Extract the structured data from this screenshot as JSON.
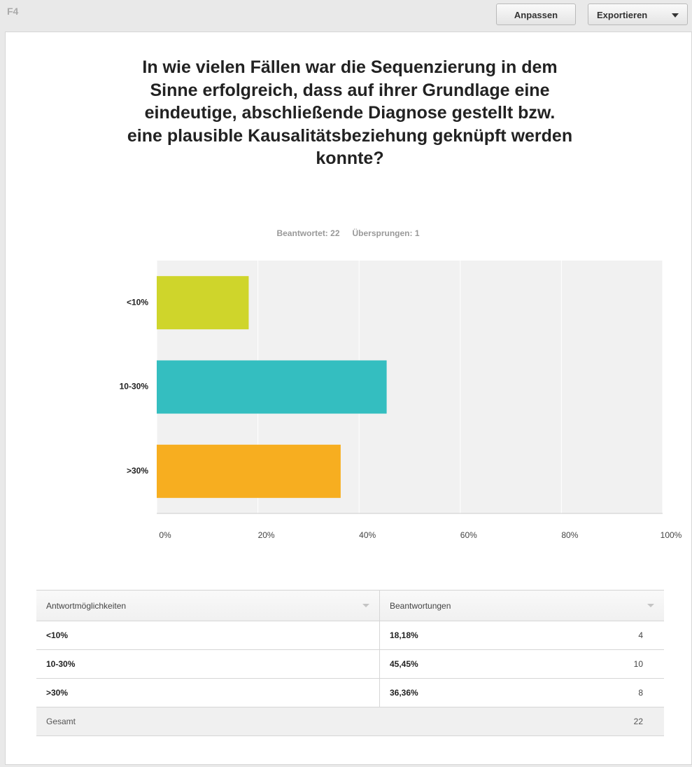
{
  "header": {
    "label": "F4",
    "buttons": [
      "Anpassen",
      "Exportieren"
    ]
  },
  "chart_data": {
    "type": "bar",
    "orientation": "horizontal",
    "title": "In wie vielen Fällen war die Sequenzierung in dem Sinne erfolgreich, dass auf ihrer Grundlage eine eindeutige, abschließende Diagnose gestellt bzw. eine plausible Kausalitätsbeziehung geknüpft werden konnte?",
    "summary": [
      "Beantwortet: 22",
      "Übersprungen: 1"
    ],
    "categories": [
      "<10%",
      "10-30%",
      ">30%"
    ],
    "values": [
      18.18,
      45.45,
      36.36
    ],
    "colors": [
      "#cfd52b",
      "#34bec0",
      "#f7ae20"
    ],
    "xlim": [
      0,
      100
    ],
    "xticks": [
      {
        "value": 0,
        "label": "0%"
      },
      {
        "value": 20,
        "label": "20%"
      },
      {
        "value": 40,
        "label": "40%"
      },
      {
        "value": 60,
        "label": "60%"
      },
      {
        "value": 80,
        "label": "80%"
      },
      {
        "value": 100,
        "label": "100%"
      }
    ],
    "grid": true
  },
  "table": {
    "columns": [
      "Antwortmöglichkeiten",
      "Beantwortungen"
    ],
    "rows": [
      [
        "<10%",
        "18,18%",
        "4"
      ],
      [
        "10-30%",
        "45,45%",
        "10"
      ],
      [
        ">30%",
        "36,36%",
        "8"
      ]
    ],
    "total": [
      "Gesamt",
      "22"
    ]
  }
}
